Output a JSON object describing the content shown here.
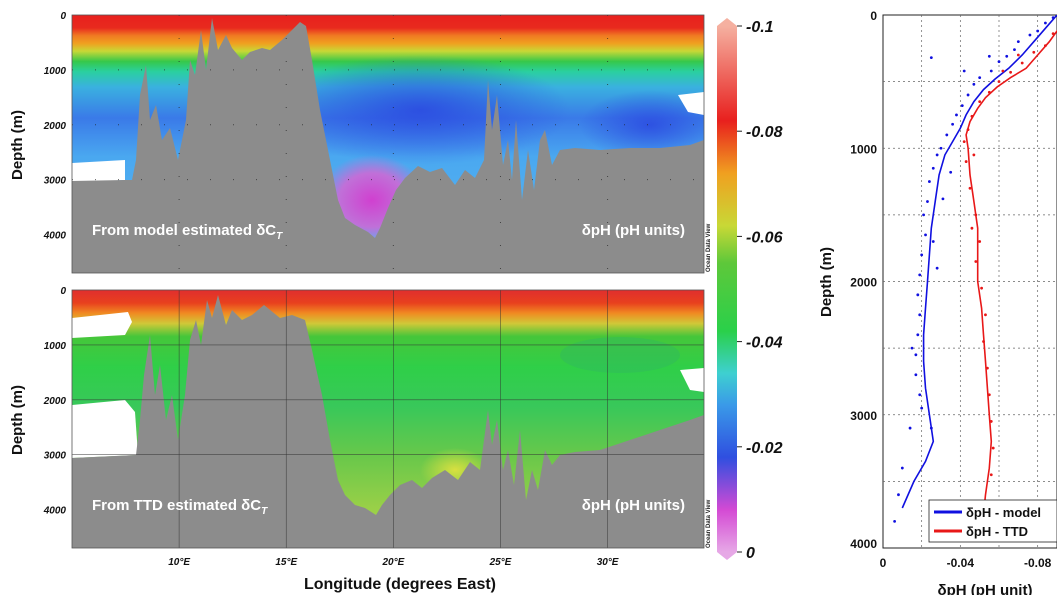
{
  "chart_data": [
    {
      "type": "heatmap",
      "title": "",
      "annotation_left": "From model estimated δC",
      "annotation_sub": "T",
      "annotation_right": "δpH (pH units)",
      "watermark": "Ocean Data View",
      "ylabel": "Depth (m)",
      "ylim": [
        0,
        4700
      ],
      "xlim": [
        5,
        34.5
      ],
      "yticks": [
        "0",
        "1000",
        "2000",
        "3000",
        "4000"
      ],
      "features": {
        "surface_red_band_depth_m": 300,
        "orange_band_depth_m": 550,
        "blue_intermediate_core_lon": [
          13,
          30
        ],
        "pink_minimum_lon": 19.2,
        "pink_minimum_depth_m": 3300
      }
    },
    {
      "type": "heatmap",
      "title": "",
      "annotation_left": "From TTD estimated δC",
      "annotation_sub": "T",
      "annotation_right": "δpH (pH units)",
      "watermark": "Ocean Data View",
      "ylabel": "Depth (m)",
      "xlabel": "Longitude (degrees East)",
      "ylim": [
        0,
        4700
      ],
      "xlim": [
        5,
        34.5
      ],
      "yticks": [
        "0",
        "1000",
        "2000",
        "3000",
        "4000"
      ],
      "xticks": [
        "10°E",
        "15°E",
        "20°E",
        "25°E",
        "30°E"
      ],
      "xtick_values": [
        10,
        15,
        20,
        25,
        30
      ]
    },
    {
      "type": "colorbar",
      "ticks": [
        "-0.1",
        "-0.08",
        "-0.06",
        "-0.04",
        "-0.02",
        "0"
      ],
      "tick_values": [
        -0.1,
        -0.08,
        -0.06,
        -0.04,
        -0.02,
        0
      ],
      "stops": [
        {
          "v": 0,
          "c": "#e6a8e6"
        },
        {
          "v": -0.008,
          "c": "#d44ad4"
        },
        {
          "v": -0.018,
          "c": "#2f4fe0"
        },
        {
          "v": -0.028,
          "c": "#3a9ae8"
        },
        {
          "v": -0.034,
          "c": "#3ed0d0"
        },
        {
          "v": -0.042,
          "c": "#2ad04a"
        },
        {
          "v": -0.055,
          "c": "#5ec83a"
        },
        {
          "v": -0.062,
          "c": "#c8d836"
        },
        {
          "v": -0.072,
          "c": "#f0a020"
        },
        {
          "v": -0.082,
          "c": "#e8201e"
        },
        {
          "v": -0.1,
          "c": "#f5b0a0"
        }
      ]
    },
    {
      "type": "line",
      "xlabel": "δpH (pH unit)",
      "ylabel": "Depth (m)",
      "xlim": [
        0,
        -0.09
      ],
      "ylim": [
        4000,
        0
      ],
      "xticks": [
        "0",
        "-0.04",
        "-0.08"
      ],
      "xtick_values": [
        0,
        -0.04,
        -0.08
      ],
      "yticks": [
        "0",
        "1000",
        "2000",
        "3000",
        "4000"
      ],
      "ytick_values": [
        0,
        1000,
        2000,
        3000,
        4000
      ],
      "legend_position": "bottom-right",
      "series": [
        {
          "name": "δpH - model",
          "color": "#1010e0",
          "points": [
            [
              -0.09,
              0
            ],
            [
              -0.084,
              100
            ],
            [
              -0.078,
              200
            ],
            [
              -0.072,
              300
            ],
            [
              -0.065,
              400
            ],
            [
              -0.058,
              480
            ],
            [
              -0.052,
              560
            ],
            [
              -0.047,
              650
            ],
            [
              -0.043,
              750
            ],
            [
              -0.04,
              850
            ],
            [
              -0.036,
              950
            ],
            [
              -0.032,
              1050
            ],
            [
              -0.029,
              1200
            ],
            [
              -0.027,
              1400
            ],
            [
              -0.025,
              1600
            ],
            [
              -0.024,
              1800
            ],
            [
              -0.023,
              2000
            ],
            [
              -0.022,
              2200
            ],
            [
              -0.021,
              2400
            ],
            [
              -0.021,
              2600
            ],
            [
              -0.022,
              2800
            ],
            [
              -0.024,
              3000
            ],
            [
              -0.026,
              3200
            ],
            [
              -0.022,
              3350
            ],
            [
              -0.016,
              3500
            ],
            [
              -0.01,
              3700
            ]
          ],
          "scatter": [
            [
              -0.088,
              20
            ],
            [
              -0.084,
              60
            ],
            [
              -0.08,
              120
            ],
            [
              -0.076,
              150
            ],
            [
              -0.07,
              200
            ],
            [
              -0.068,
              260
            ],
            [
              -0.064,
              310
            ],
            [
              -0.06,
              350
            ],
            [
              -0.056,
              420
            ],
            [
              -0.05,
              470
            ],
            [
              -0.047,
              520
            ],
            [
              -0.044,
              600
            ],
            [
              -0.041,
              680
            ],
            [
              -0.038,
              750
            ],
            [
              -0.036,
              820
            ],
            [
              -0.033,
              900
            ],
            [
              -0.03,
              1000
            ],
            [
              -0.028,
              1050
            ],
            [
              -0.026,
              1150
            ],
            [
              -0.024,
              1250
            ],
            [
              -0.023,
              1400
            ],
            [
              -0.021,
              1500
            ],
            [
              -0.022,
              1650
            ],
            [
              -0.02,
              1800
            ],
            [
              -0.019,
              1950
            ],
            [
              -0.018,
              2100
            ],
            [
              -0.019,
              2250
            ],
            [
              -0.018,
              2400
            ],
            [
              -0.017,
              2550
            ],
            [
              -0.017,
              2700
            ],
            [
              -0.019,
              2850
            ],
            [
              -0.02,
              2950
            ],
            [
              -0.025,
              3100
            ],
            [
              -0.01,
              3400
            ],
            [
              -0.008,
              3600
            ],
            [
              -0.006,
              3800
            ],
            [
              -0.025,
              320
            ],
            [
              -0.042,
              420
            ],
            [
              -0.055,
              310
            ],
            [
              -0.035,
              1180
            ],
            [
              -0.031,
              1380
            ],
            [
              -0.026,
              1700
            ],
            [
              -0.028,
              1900
            ],
            [
              -0.015,
              2500
            ],
            [
              -0.014,
              3100
            ]
          ]
        },
        {
          "name": "δpH - TTD",
          "color": "#e81818",
          "points": [
            [
              -0.095,
              30
            ],
            [
              -0.091,
              100
            ],
            [
              -0.086,
              200
            ],
            [
              -0.08,
              300
            ],
            [
              -0.074,
              400
            ],
            [
              -0.066,
              470
            ],
            [
              -0.059,
              540
            ],
            [
              -0.053,
              620
            ],
            [
              -0.049,
              700
            ],
            [
              -0.045,
              800
            ],
            [
              -0.043,
              900
            ],
            [
              -0.044,
              1000
            ],
            [
              -0.045,
              1200
            ],
            [
              -0.047,
              1400
            ],
            [
              -0.049,
              1600
            ],
            [
              -0.049,
              1800
            ],
            [
              -0.049,
              2000
            ],
            [
              -0.051,
              2200
            ],
            [
              -0.052,
              2400
            ],
            [
              -0.053,
              2600
            ],
            [
              -0.054,
              2800
            ],
            [
              -0.055,
              3000
            ],
            [
              -0.056,
              3200
            ],
            [
              -0.055,
              3400
            ],
            [
              -0.053,
              3600
            ],
            [
              -0.052,
              3750
            ]
          ],
          "scatter": [
            [
              -0.092,
              60
            ],
            [
              -0.088,
              140
            ],
            [
              -0.084,
              230
            ],
            [
              -0.078,
              280
            ],
            [
              -0.072,
              360
            ],
            [
              -0.066,
              430
            ],
            [
              -0.06,
              500
            ],
            [
              -0.055,
              580
            ],
            [
              -0.05,
              650
            ],
            [
              -0.046,
              760
            ],
            [
              -0.044,
              860
            ],
            [
              -0.042,
              950
            ],
            [
              -0.043,
              1100
            ],
            [
              -0.045,
              1300
            ],
            [
              -0.048,
              1500
            ],
            [
              -0.05,
              1700
            ],
            [
              -0.048,
              1850
            ],
            [
              -0.051,
              2050
            ],
            [
              -0.053,
              2250
            ],
            [
              -0.052,
              2450
            ],
            [
              -0.054,
              2650
            ],
            [
              -0.055,
              2850
            ],
            [
              -0.056,
              3050
            ],
            [
              -0.057,
              3250
            ],
            [
              -0.056,
              3450
            ],
            [
              -0.054,
              3700
            ],
            [
              -0.062,
              420
            ],
            [
              -0.07,
              300
            ],
            [
              -0.047,
              1050
            ],
            [
              -0.046,
              1600
            ]
          ]
        }
      ]
    }
  ]
}
